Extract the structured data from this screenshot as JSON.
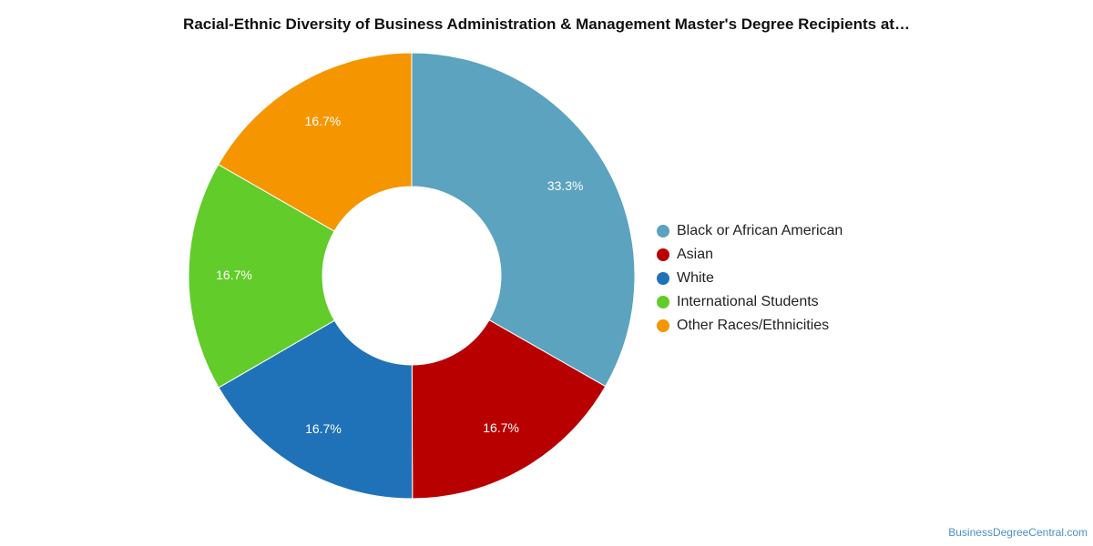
{
  "chart_data": {
    "type": "pie",
    "title": "Racial-Ethnic Diversity of Business Administration & Management Master's Degree Recipients at…",
    "donut": true,
    "categories": [
      "Black or African American",
      "Asian",
      "White",
      "International Students",
      "Other Races/Ethnicities"
    ],
    "values": [
      33.3,
      16.7,
      16.7,
      16.7,
      16.7
    ],
    "labels": [
      "33.3%",
      "16.7%",
      "16.7%",
      "16.7%",
      "16.7%"
    ],
    "colors": [
      "#5ba3bf",
      "#b80000",
      "#1f72b8",
      "#62cc2a",
      "#f59600"
    ],
    "legend_position": "right"
  },
  "credit": "BusinessDegreeCentral.com"
}
